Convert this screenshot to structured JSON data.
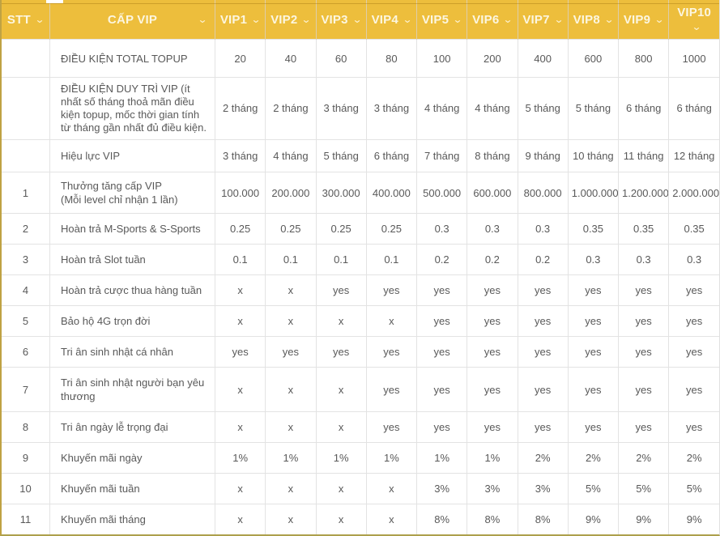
{
  "icons": {
    "chevron_down": "⌄"
  },
  "colors": {
    "header_bg": "#EDBE3C",
    "header_text": "#FCF6E0",
    "outer_border": "#BFA243",
    "inner_border": "#E3E3E3",
    "body_text": "#595959"
  },
  "table": {
    "headers": [
      "STT",
      "CẤP VIP",
      "VIP1",
      "VIP2",
      "VIP3",
      "VIP4",
      "VIP5",
      "VIP6",
      "VIP7",
      "VIP8",
      "VIP9",
      "VIP10"
    ],
    "rows": [
      {
        "stt": "",
        "label": "ĐIỀU KIỆN TOTAL TOPUP",
        "values": [
          "20",
          "40",
          "60",
          "80",
          "100",
          "200",
          "400",
          "600",
          "800",
          "1000"
        ]
      },
      {
        "stt": "",
        "label": "ĐIỀU KIỆN DUY TRÌ VIP (ít nhất số tháng thoả mãn điều kiện topup, mốc thời gian tính từ tháng gần nhất đủ điều kiện.",
        "values": [
          "2 tháng",
          "2 tháng",
          "3 tháng",
          "3 tháng",
          "4 tháng",
          "4 tháng",
          "5 tháng",
          "5 tháng",
          "6 tháng",
          "6 tháng"
        ]
      },
      {
        "stt": "",
        "label": "Hiệu lực VIP",
        "values": [
          "3 tháng",
          "4 tháng",
          "5 tháng",
          "6 tháng",
          "7 tháng",
          "8 tháng",
          "9 tháng",
          "10 tháng",
          "11 tháng",
          "12 tháng"
        ]
      },
      {
        "stt": "1",
        "label": "Thưởng tăng cấp VIP\n(Mỗi level chỉ nhận 1 lần)",
        "values": [
          "100.000",
          "200.000",
          "300.000",
          "400.000",
          "500.000",
          "600.000",
          "800.000",
          "1.000.000",
          "1.200.000",
          "2.000.000"
        ]
      },
      {
        "stt": "2",
        "label": "Hoàn trả M-Sports & S-Sports",
        "values": [
          "0.25",
          "0.25",
          "0.25",
          "0.25",
          "0.3",
          "0.3",
          "0.3",
          "0.35",
          "0.35",
          "0.35"
        ]
      },
      {
        "stt": "3",
        "label": "Hoàn trả Slot tuần",
        "values": [
          "0.1",
          "0.1",
          "0.1",
          "0.1",
          "0.2",
          "0.2",
          "0.2",
          "0.3",
          "0.3",
          "0.3"
        ]
      },
      {
        "stt": "4",
        "label": "Hoàn trả cược thua hàng tuần",
        "values": [
          "x",
          "x",
          "yes",
          "yes",
          "yes",
          "yes",
          "yes",
          "yes",
          "yes",
          "yes"
        ]
      },
      {
        "stt": "5",
        "label": "Bảo hộ 4G trọn đời",
        "values": [
          "x",
          "x",
          "x",
          "x",
          "yes",
          "yes",
          "yes",
          "yes",
          "yes",
          "yes"
        ]
      },
      {
        "stt": "6",
        "label": "Tri ân sinh nhật cá nhân",
        "values": [
          "yes",
          "yes",
          "yes",
          "yes",
          "yes",
          "yes",
          "yes",
          "yes",
          "yes",
          "yes"
        ]
      },
      {
        "stt": "7",
        "label": "Tri ân sinh nhật người bạn yêu thương",
        "values": [
          "x",
          "x",
          "x",
          "yes",
          "yes",
          "yes",
          "yes",
          "yes",
          "yes",
          "yes"
        ]
      },
      {
        "stt": "8",
        "label": "Tri ân ngày lễ trọng đại",
        "values": [
          "x",
          "x",
          "x",
          "yes",
          "yes",
          "yes",
          "yes",
          "yes",
          "yes",
          "yes"
        ]
      },
      {
        "stt": "9",
        "label": "Khuyến mãi ngày",
        "values": [
          "1%",
          "1%",
          "1%",
          "1%",
          "1%",
          "1%",
          "2%",
          "2%",
          "2%",
          "2%"
        ]
      },
      {
        "stt": "10",
        "label": "Khuyến mãi tuần",
        "values": [
          "x",
          "x",
          "x",
          "x",
          "3%",
          "3%",
          "3%",
          "5%",
          "5%",
          "5%"
        ]
      },
      {
        "stt": "11",
        "label": "Khuyến mãi tháng",
        "values": [
          "x",
          "x",
          "x",
          "x",
          "8%",
          "8%",
          "8%",
          "9%",
          "9%",
          "9%"
        ]
      }
    ]
  }
}
